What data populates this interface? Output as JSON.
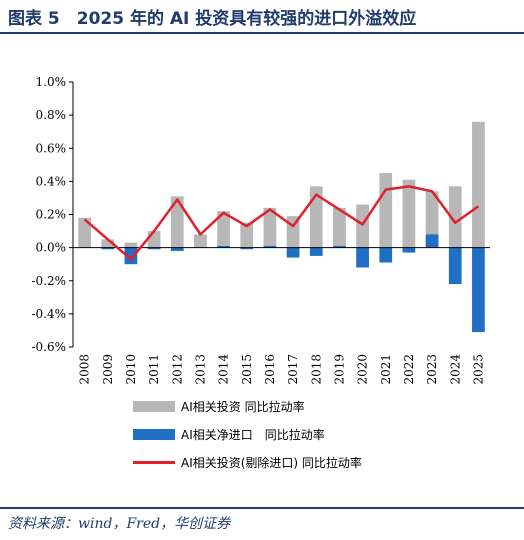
{
  "header": {
    "title": "图表 5　2025 年的 AI 投资具有较强的进口外溢效应"
  },
  "footer": {
    "source": "资料来源：wind，Fred，华创证券"
  },
  "colors": {
    "title": "#1f3c6e",
    "series_total": "#b7b7b7",
    "series_import": "#1f6fc4",
    "series_ex_import": "#e0202a"
  },
  "chart_data": {
    "type": "bar",
    "categories": [
      "2008",
      "2009",
      "2010",
      "2011",
      "2012",
      "2013",
      "2014",
      "2015",
      "2016",
      "2017",
      "2018",
      "2019",
      "2020",
      "2021",
      "2022",
      "2023",
      "2024",
      "2025"
    ],
    "ylim": [
      -0.6,
      1.0
    ],
    "yticks": [
      "-0.6%",
      "-0.4%",
      "-0.2%",
      "0.0%",
      "0.2%",
      "0.4%",
      "0.6%",
      "0.8%",
      "1.0%"
    ],
    "ytick_values": [
      -0.6,
      -0.4,
      -0.2,
      0.0,
      0.2,
      0.4,
      0.6,
      0.8,
      1.0
    ],
    "series": [
      {
        "name": "AI相关投资 同比拉动率",
        "type": "bar",
        "values": [
          0.18,
          0.05,
          0.03,
          0.1,
          0.31,
          0.08,
          0.22,
          0.15,
          0.24,
          0.19,
          0.37,
          0.24,
          0.26,
          0.45,
          0.41,
          0.34,
          0.37,
          0.76
        ]
      },
      {
        "name": "AI相关净进口　同比拉动率",
        "type": "bar",
        "values": [
          0.0,
          -0.01,
          -0.1,
          -0.01,
          -0.02,
          0.0,
          0.01,
          -0.01,
          0.01,
          -0.06,
          -0.05,
          0.01,
          -0.12,
          -0.09,
          -0.03,
          0.08,
          -0.22,
          -0.51
        ]
      },
      {
        "name": "AI相关投资(剔除进口) 同比拉动率",
        "type": "line",
        "values": [
          0.17,
          0.05,
          -0.07,
          0.1,
          0.29,
          0.08,
          0.21,
          0.13,
          0.23,
          0.13,
          0.32,
          0.23,
          0.14,
          0.35,
          0.37,
          0.34,
          0.15,
          0.25
        ]
      }
    ]
  }
}
